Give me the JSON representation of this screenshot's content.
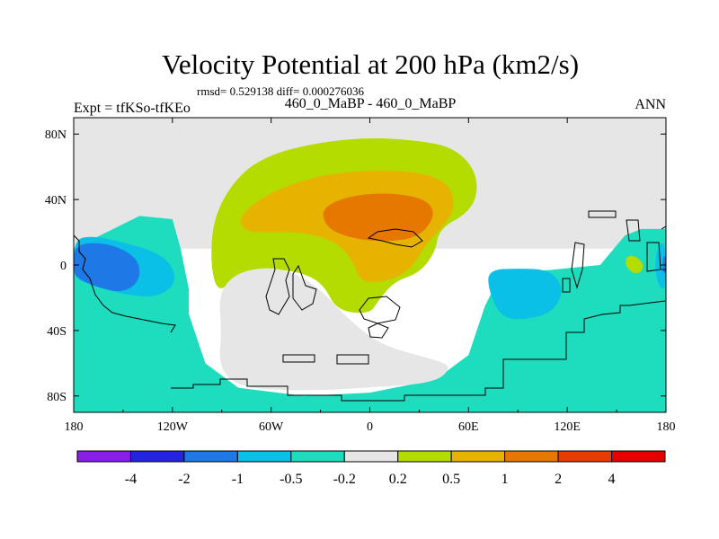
{
  "chart_data": {
    "type": "heatmap",
    "title": "Velocity Potential at 200 hPa (km2/s)",
    "subtitle": "rmsd= 0.529138 diff= 0.000276036",
    "left_label": "Expt = tfKSo-tfKEo",
    "center_label": "460_0_MaBP - 460_0_MaBP",
    "right_label": "ANN",
    "xlabel": "",
    "ylabel": "",
    "xlim": [
      -180,
      180
    ],
    "ylim": [
      -90,
      90
    ],
    "x_ticks": [
      {
        "value": -180,
        "label": "180"
      },
      {
        "value": -120,
        "label": "120W"
      },
      {
        "value": -60,
        "label": "60W"
      },
      {
        "value": 0,
        "label": "0"
      },
      {
        "value": 60,
        "label": "60E"
      },
      {
        "value": 120,
        "label": "120E"
      },
      {
        "value": 180,
        "label": "180"
      }
    ],
    "y_ticks": [
      {
        "value": 80,
        "label": "80N"
      },
      {
        "value": 40,
        "label": "40N"
      },
      {
        "value": 0,
        "label": "0"
      },
      {
        "value": -40,
        "label": "40S"
      },
      {
        "value": -80,
        "label": "80S"
      }
    ],
    "colorbar": {
      "colors": [
        "#8a1ee6",
        "#2424e0",
        "#1e78e6",
        "#0ac0e6",
        "#1edcbe",
        "#e6e6e6",
        "#b4dc00",
        "#e6b400",
        "#e67800",
        "#e63c00",
        "#e60000"
      ],
      "labels": [
        "-4",
        "-2",
        "-1",
        "-0.5",
        "-0.2",
        "0.2",
        "0.5",
        "1",
        "2",
        "4"
      ]
    },
    "regions": [
      {
        "name": "northern-neutral",
        "level": "-0.2 to 0.2",
        "color": "#e6e6e6",
        "points": [
          [
            -180,
            90
          ],
          [
            180,
            90
          ],
          [
            180,
            10
          ],
          [
            -180,
            10
          ]
        ]
      },
      {
        "name": "southern-weak-negative",
        "level": "-0.5 to -0.2",
        "color": "#1edcbe",
        "points": [
          [
            -180,
            10
          ],
          [
            -160,
            20
          ],
          [
            -140,
            30
          ],
          [
            -120,
            28
          ],
          [
            -115,
            10
          ],
          [
            -110,
            -15
          ],
          [
            -110,
            -30
          ],
          [
            -100,
            -60
          ],
          [
            -80,
            -75
          ],
          [
            -40,
            -80
          ],
          [
            0,
            -78
          ],
          [
            40,
            -70
          ],
          [
            60,
            -55
          ],
          [
            70,
            -25
          ],
          [
            80,
            -5
          ],
          [
            110,
            -3
          ],
          [
            140,
            0
          ],
          [
            155,
            18
          ],
          [
            165,
            22
          ],
          [
            180,
            22
          ],
          [
            180,
            -90
          ],
          [
            -180,
            -90
          ]
        ]
      },
      {
        "name": "west-pacific-negative",
        "level": "-1 to -0.5",
        "color": "#0ac0e6",
        "points": [
          [
            -180,
            15
          ],
          [
            -170,
            18
          ],
          [
            -150,
            14
          ],
          [
            -130,
            8
          ],
          [
            -120,
            0
          ],
          [
            -118,
            -12
          ],
          [
            -130,
            -20
          ],
          [
            -150,
            -18
          ],
          [
            -170,
            -12
          ],
          [
            -180,
            -8
          ]
        ]
      },
      {
        "name": "west-pacific-core",
        "level": "-2 to -1",
        "color": "#1e78e6",
        "points": [
          [
            -180,
            12
          ],
          [
            -165,
            14
          ],
          [
            -150,
            10
          ],
          [
            -140,
            2
          ],
          [
            -140,
            -10
          ],
          [
            -150,
            -17
          ],
          [
            -165,
            -14
          ],
          [
            -178,
            -8
          ],
          [
            -180,
            -4
          ]
        ]
      },
      {
        "name": "indian-ocean-negative",
        "level": "-1 to -0.5",
        "color": "#0ac0e6",
        "points": [
          [
            72,
            -3
          ],
          [
            90,
            -2
          ],
          [
            110,
            -3
          ],
          [
            118,
            -15
          ],
          [
            112,
            -28
          ],
          [
            98,
            -33
          ],
          [
            80,
            -33
          ],
          [
            72,
            -15
          ]
        ]
      },
      {
        "name": "east-dateline-negative",
        "level": "-1 to -0.5",
        "color": "#0ac0e6",
        "points": [
          [
            175,
            12
          ],
          [
            180,
            14
          ],
          [
            180,
            -15
          ],
          [
            176,
            -14
          ],
          [
            173,
            -2
          ]
        ]
      },
      {
        "name": "east-dateline-core",
        "level": "-2 to -1",
        "color": "#1e78e6",
        "points": [
          [
            178,
            5
          ],
          [
            180,
            6
          ],
          [
            180,
            -6
          ],
          [
            178,
            -4
          ]
        ]
      },
      {
        "name": "africa-eurasia-positive",
        "level": "0.2 to 0.5",
        "color": "#b4dc00",
        "points": [
          [
            -95,
            30
          ],
          [
            -80,
            55
          ],
          [
            -60,
            68
          ],
          [
            -30,
            75
          ],
          [
            0,
            78
          ],
          [
            30,
            76
          ],
          [
            50,
            72
          ],
          [
            63,
            60
          ],
          [
            66,
            45
          ],
          [
            60,
            32
          ],
          [
            42,
            22
          ],
          [
            40,
            8
          ],
          [
            30,
            -5
          ],
          [
            15,
            -10
          ],
          [
            5,
            -22
          ],
          [
            0,
            -30
          ],
          [
            -20,
            -28
          ],
          [
            -28,
            -12
          ],
          [
            -40,
            -5
          ],
          [
            -60,
            -2
          ],
          [
            -80,
            -5
          ],
          [
            -92,
            -18
          ],
          [
            -97,
            0
          ]
        ]
      },
      {
        "name": "africa-eurasia-moderate",
        "level": "0.5 to 1",
        "color": "#e6b400",
        "points": [
          [
            -80,
            30
          ],
          [
            -60,
            45
          ],
          [
            -30,
            55
          ],
          [
            0,
            58
          ],
          [
            30,
            57
          ],
          [
            48,
            50
          ],
          [
            52,
            36
          ],
          [
            46,
            25
          ],
          [
            35,
            14
          ],
          [
            28,
            2
          ],
          [
            18,
            -8
          ],
          [
            -5,
            -12
          ],
          [
            -10,
            2
          ],
          [
            -20,
            14
          ],
          [
            -40,
            20
          ],
          [
            -60,
            20
          ],
          [
            -76,
            20
          ]
        ]
      },
      {
        "name": "africa-eurasia-core",
        "level": "1 to 2",
        "color": "#e67800",
        "points": [
          [
            -30,
            35
          ],
          [
            -10,
            43
          ],
          [
            15,
            44
          ],
          [
            35,
            40
          ],
          [
            40,
            30
          ],
          [
            30,
            17
          ],
          [
            10,
            14
          ],
          [
            -10,
            16
          ],
          [
            -26,
            22
          ]
        ]
      },
      {
        "name": "west-pacific-island-positive",
        "level": "0.2 to 0.5",
        "color": "#b4dc00",
        "points": [
          [
            157,
            6
          ],
          [
            163,
            5
          ],
          [
            167,
            -1
          ],
          [
            163,
            -6
          ],
          [
            157,
            -3
          ],
          [
            155,
            2
          ]
        ]
      },
      {
        "name": "south-atlantic-neutral-tongue",
        "level": "-0.2 to 0.2",
        "color": "#e6e6e6",
        "points": [
          [
            -92,
            -18
          ],
          [
            -82,
            -5
          ],
          [
            -62,
            -1
          ],
          [
            -45,
            -5
          ],
          [
            -30,
            -15
          ],
          [
            -18,
            -28
          ],
          [
            -5,
            -40
          ],
          [
            10,
            -50
          ],
          [
            40,
            -58
          ],
          [
            50,
            -62
          ],
          [
            40,
            -72
          ],
          [
            0,
            -75
          ],
          [
            -40,
            -77
          ],
          [
            -80,
            -75
          ],
          [
            -92,
            -62
          ],
          [
            -90,
            -40
          ]
        ]
      }
    ]
  }
}
